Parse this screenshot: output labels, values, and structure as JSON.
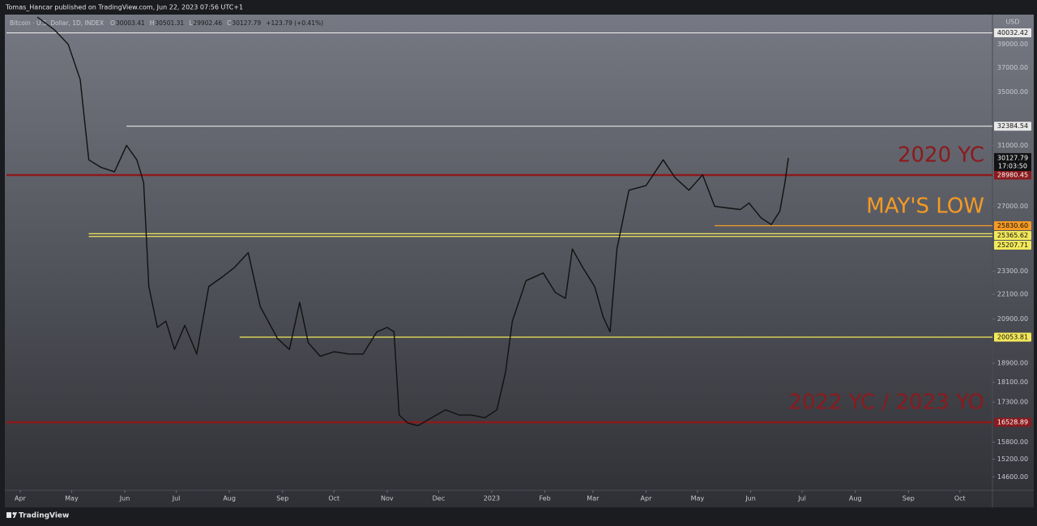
{
  "header": "Tomas_Hancar published on TradingView.com, Jun 22, 2023 07:56 UTC+1",
  "footer": "TradingView",
  "legend": {
    "symbol": "Bitcoin · U.S. Dollar, 1D, INDEX",
    "ohlc": [
      {
        "key": "O",
        "value": 30003.41
      },
      {
        "key": "H",
        "value": 30501.31
      },
      {
        "key": "L",
        "value": 29902.46
      },
      {
        "key": "C",
        "value": 30127.79
      }
    ],
    "change": "+123.79 (+0.41%)"
  },
  "currency": "USD",
  "chart_data": {
    "type": "line",
    "log_scale": true,
    "grid": false,
    "xlim": [
      -8,
      567
    ],
    "ylim": [
      14160,
      41730
    ],
    "xticks": [
      {
        "value": 0,
        "label": "Apr"
      },
      {
        "value": 30,
        "label": "May"
      },
      {
        "value": 61,
        "label": "Jun"
      },
      {
        "value": 91,
        "label": "Jul"
      },
      {
        "value": 122,
        "label": "Aug"
      },
      {
        "value": 153,
        "label": "Sep"
      },
      {
        "value": 183,
        "label": "Oct"
      },
      {
        "value": 214,
        "label": "Nov"
      },
      {
        "value": 244,
        "label": "Dec"
      },
      {
        "value": 275,
        "label": "2023"
      },
      {
        "value": 306,
        "label": "Feb"
      },
      {
        "value": 334,
        "label": "Mar"
      },
      {
        "value": 365,
        "label": "Apr"
      },
      {
        "value": 395,
        "label": "May"
      },
      {
        "value": 426,
        "label": "Jun"
      },
      {
        "value": 456,
        "label": "Jul"
      },
      {
        "value": 487,
        "label": "Aug"
      },
      {
        "value": 518,
        "label": "Sep"
      },
      {
        "value": 548,
        "label": "Oct"
      }
    ],
    "yticks": [
      {
        "value": 14600,
        "label": "14600.00"
      },
      {
        "value": 15200,
        "label": "15200.00"
      },
      {
        "value": 15800,
        "label": "15800.00"
      },
      {
        "value": 17300,
        "label": "17300.00"
      },
      {
        "value": 18100,
        "label": "18100.00"
      },
      {
        "value": 18900,
        "label": "18900.00"
      },
      {
        "value": 20900,
        "label": "20900.00"
      },
      {
        "value": 22100,
        "label": "22100.00"
      },
      {
        "value": 23300,
        "label": "23300.00"
      },
      {
        "value": 27000,
        "label": "27000.00"
      },
      {
        "value": 31000,
        "label": "31000.00"
      },
      {
        "value": 35000,
        "label": "35000.00"
      },
      {
        "value": 37000,
        "label": "37000.00"
      },
      {
        "value": 39000,
        "label": "39000.00"
      }
    ],
    "series": [
      {
        "name": "Bitcoin",
        "color": "#111111",
        "x": [
          10,
          20,
          28,
          35,
          40,
          47,
          55,
          62,
          68,
          72,
          75,
          80,
          85,
          90,
          96,
          103,
          110,
          118,
          125,
          133,
          140,
          150,
          157,
          163,
          168,
          175,
          183,
          192,
          200,
          208,
          214,
          218,
          221,
          226,
          232,
          240,
          248,
          256,
          263,
          271,
          278,
          283,
          287,
          295,
          305,
          312,
          318,
          322,
          328,
          335,
          340,
          344,
          348,
          355,
          365,
          375,
          382,
          390,
          398,
          405,
          412,
          420,
          425,
          432,
          438,
          443,
          446,
          448
        ],
        "values": [
          41500,
          40300,
          39000,
          36000,
          30000,
          29500,
          29200,
          31000,
          30000,
          28500,
          22500,
          20500,
          20800,
          19500,
          20600,
          19300,
          22500,
          23000,
          23500,
          24300,
          21500,
          20000,
          19500,
          21700,
          19800,
          19200,
          19400,
          19300,
          19300,
          20300,
          20500,
          20300,
          16800,
          16500,
          16400,
          16700,
          17000,
          16800,
          16800,
          16700,
          17000,
          18500,
          20800,
          22800,
          23200,
          22200,
          21900,
          24500,
          23500,
          22500,
          21000,
          20300,
          24500,
          28000,
          28300,
          30000,
          28800,
          28000,
          29000,
          27000,
          26900,
          26800,
          27200,
          26300,
          25900,
          26700,
          28500,
          30127.79
        ]
      }
    ],
    "last_price": {
      "value": 30127.79,
      "countdown": "17:03:50"
    },
    "levels": [
      {
        "value": 40032.42,
        "label": "40032.42",
        "color": "#e8e8e8",
        "from": -8
      },
      {
        "value": 32384.54,
        "label": "32384.54",
        "color": "#e8e8e8",
        "from": 62
      },
      {
        "value": 28980.45,
        "label": "28980.45",
        "color": "#8b1a1d",
        "from": -8
      },
      {
        "value": 25830.6,
        "label": "25830.60",
        "color": "#f59a23",
        "from": 405
      },
      {
        "value": 25365.62,
        "label": "25365.62",
        "color": "#f2e85a",
        "from": 40
      },
      {
        "value": 25207.71,
        "label": "25207.71",
        "color": "#f2e85a",
        "from": 40
      },
      {
        "value": 20053.81,
        "label": "20053.81",
        "color": "#f2e85a",
        "from": 128
      },
      {
        "value": 16528.89,
        "label": "16528.89",
        "color": "#8b1a1d",
        "from": -8
      }
    ],
    "annotations": [
      {
        "text": "2020 YC",
        "color": "#8b1a1d"
      },
      {
        "text": "MAY'S LOW",
        "color": "#f59a23"
      },
      {
        "text": "2022 YC / 2023 YO",
        "color": "#8b1a1d"
      }
    ]
  }
}
